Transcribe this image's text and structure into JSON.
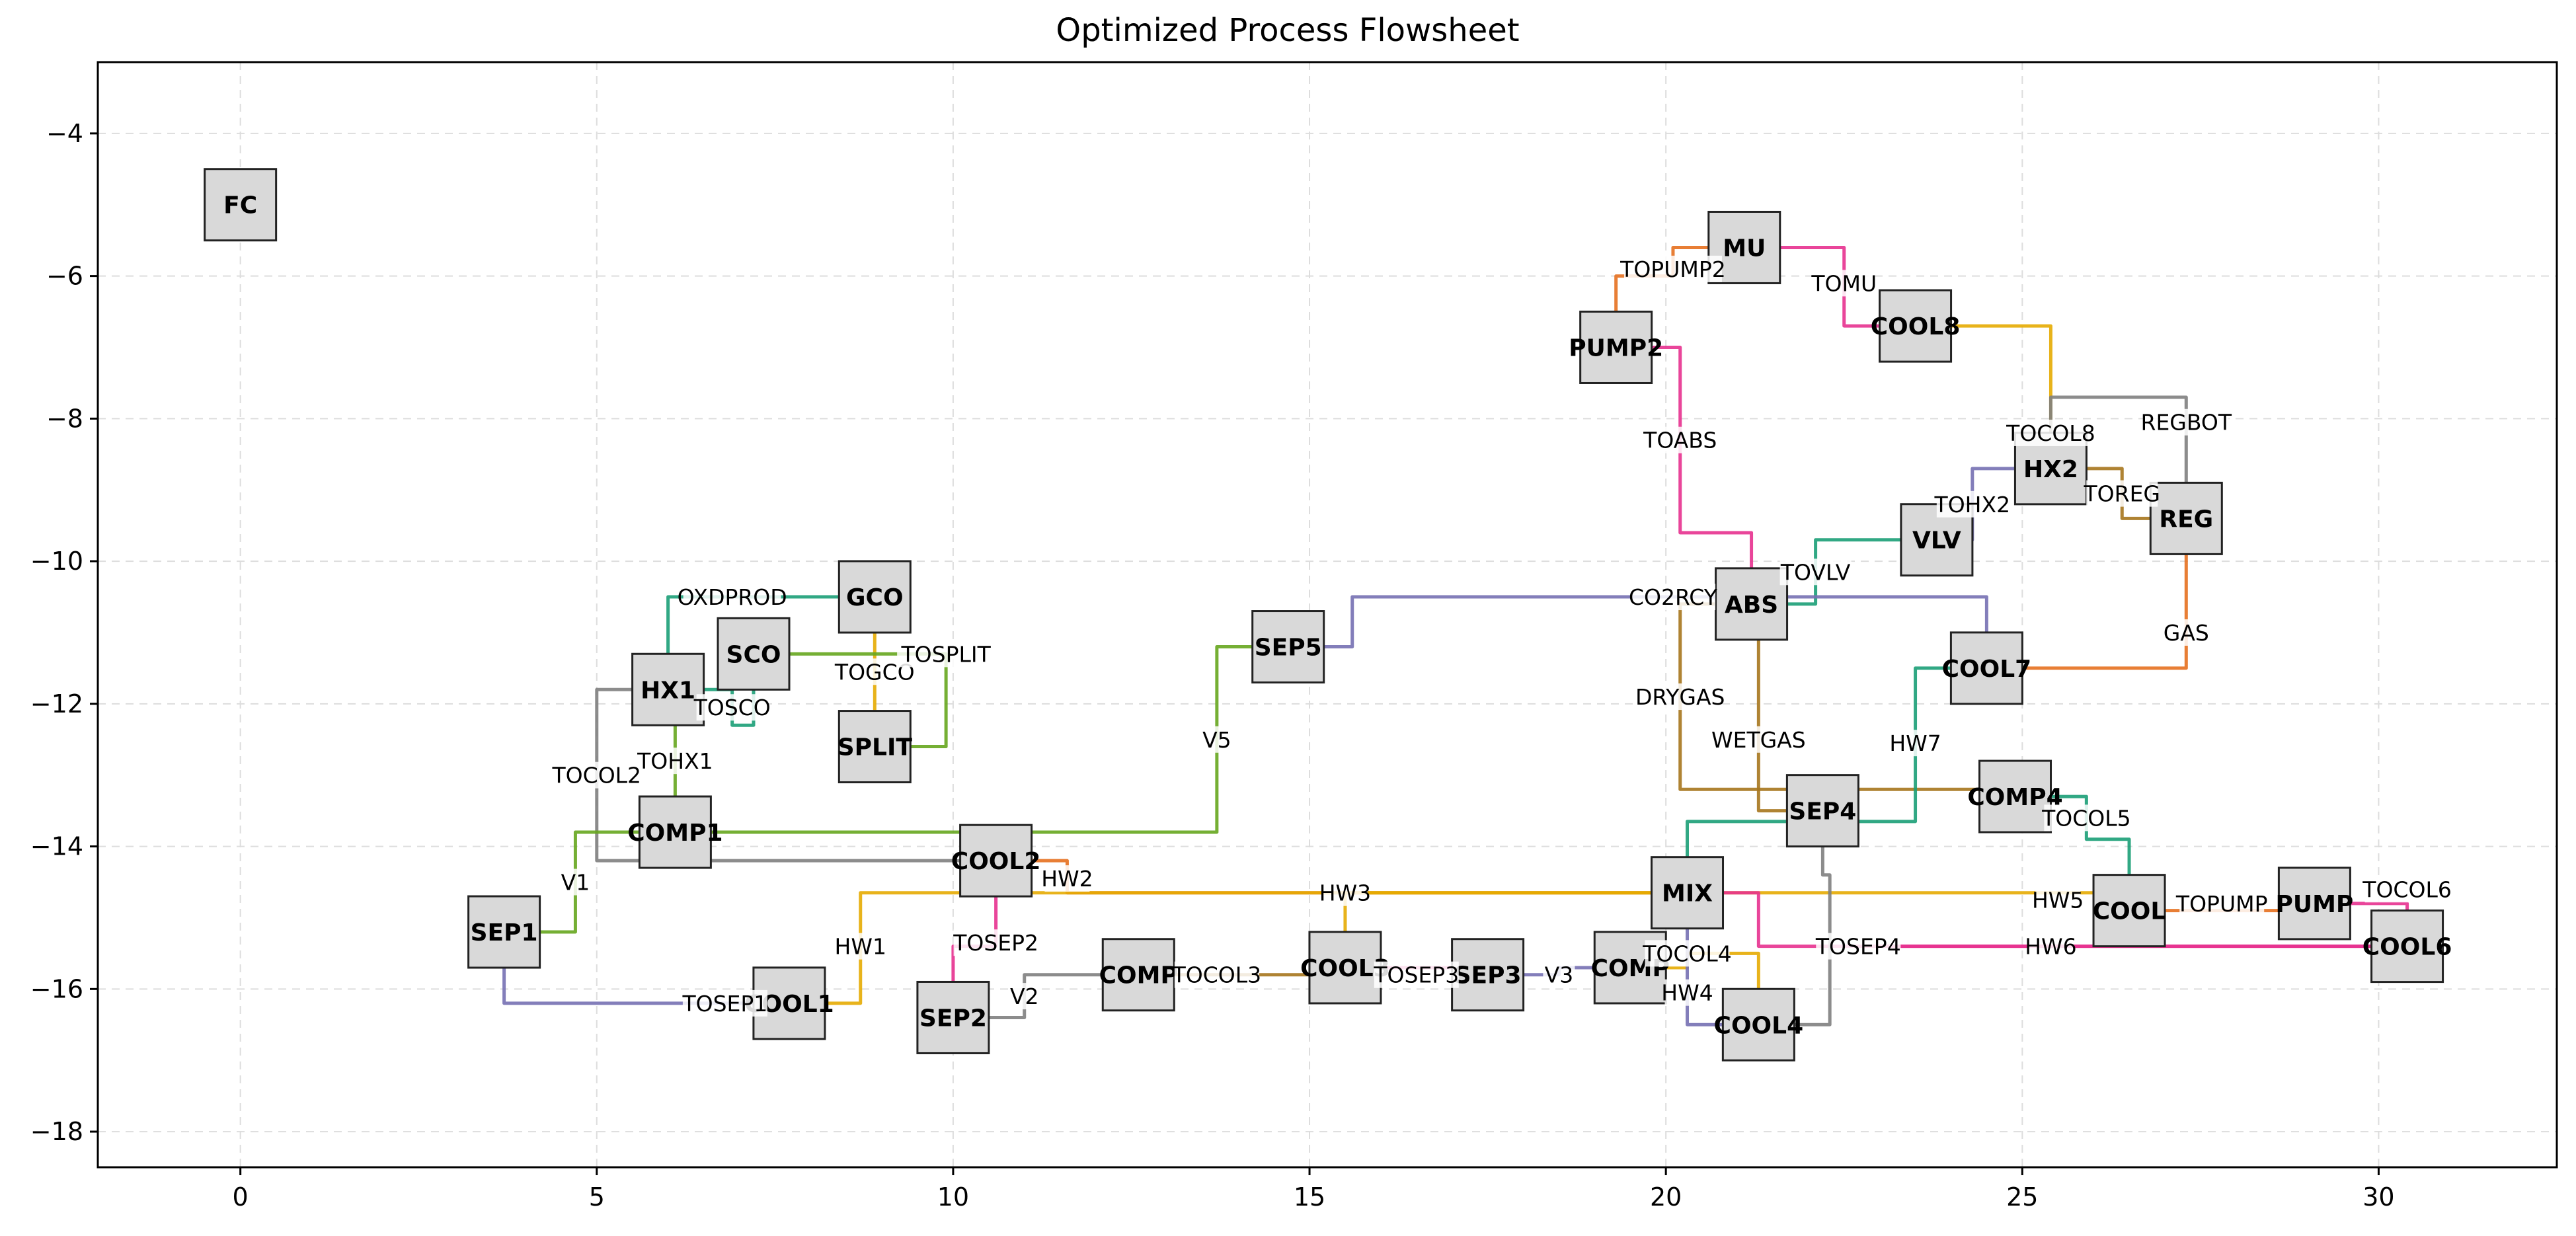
{
  "chart_data": {
    "type": "flowsheet",
    "title": "Optimized Process Flowsheet",
    "xlim": [
      -2,
      32.5
    ],
    "ylim": [
      -18.5,
      -3
    ],
    "xticks": [
      0,
      5,
      10,
      15,
      20,
      25,
      30
    ],
    "yticks": [
      -4,
      -6,
      -8,
      -10,
      -12,
      -14,
      -16,
      -18
    ],
    "grid": true,
    "nodes": [
      {
        "id": "FC",
        "label": "FC",
        "x": 0,
        "y": -5
      },
      {
        "id": "MU",
        "label": "MU",
        "x": 21.1,
        "y": -5.6
      },
      {
        "id": "PUMP2",
        "label": "PUMP2",
        "x": 19.3,
        "y": -7
      },
      {
        "id": "COOL8",
        "label": "COOL8",
        "x": 23.5,
        "y": -6.7
      },
      {
        "id": "HX2",
        "label": "HX2",
        "x": 25.4,
        "y": -8.7
      },
      {
        "id": "REG",
        "label": "REG",
        "x": 27.3,
        "y": -9.4
      },
      {
        "id": "VLV",
        "label": "VLV",
        "x": 23.8,
        "y": -9.7
      },
      {
        "id": "ABS",
        "label": "ABS",
        "x": 21.2,
        "y": -10.6
      },
      {
        "id": "COOL7",
        "label": "COOL7",
        "x": 24.5,
        "y": -11.5
      },
      {
        "id": "GCO",
        "label": "GCO",
        "x": 8.9,
        "y": -10.5
      },
      {
        "id": "SCO",
        "label": "SCO",
        "x": 7.2,
        "y": -11.3
      },
      {
        "id": "HX1",
        "label": "HX1",
        "x": 6,
        "y": -11.8
      },
      {
        "id": "SPLIT",
        "label": "SPLIT",
        "x": 8.9,
        "y": -12.6
      },
      {
        "id": "SEP5",
        "label": "SEP5",
        "x": 14.7,
        "y": -11.2
      },
      {
        "id": "COMP1",
        "label": "COMP1",
        "x": 6.1,
        "y": -13.8
      },
      {
        "id": "COOL2",
        "label": "COOL2",
        "x": 10.6,
        "y": -14.2
      },
      {
        "id": "SEP4",
        "label": "SEP4",
        "x": 22.2,
        "y": -13.5
      },
      {
        "id": "COMP4",
        "label": "COMP4",
        "x": 24.9,
        "y": -13.3
      },
      {
        "id": "MIX",
        "label": "MIX",
        "x": 20.3,
        "y": -14.65
      },
      {
        "id": "COOL5",
        "label": "COOL",
        "x": 26.5,
        "y": -14.9
      },
      {
        "id": "PUMP",
        "label": "PUMP",
        "x": 29.1,
        "y": -14.8
      },
      {
        "id": "COOL6",
        "label": "COOL6",
        "x": 30.4,
        "y": -15.4
      },
      {
        "id": "SEP1",
        "label": "SEP1",
        "x": 3.7,
        "y": -15.2
      },
      {
        "id": "COOL1",
        "label": "COOL1",
        "x": 7.7,
        "y": -16.2
      },
      {
        "id": "SEP2",
        "label": "SEP2",
        "x": 10,
        "y": -16.4
      },
      {
        "id": "COMP2",
        "label": "COMP",
        "x": 12.6,
        "y": -15.8
      },
      {
        "id": "COOL3",
        "label": "COOL3",
        "x": 15.5,
        "y": -15.7
      },
      {
        "id": "SEP3",
        "label": "SEP3",
        "x": 17.5,
        "y": -15.8
      },
      {
        "id": "COMP3",
        "label": "COMP",
        "x": 19.5,
        "y": -15.7
      },
      {
        "id": "COOL4",
        "label": "COOL4",
        "x": 21.3,
        "y": -16.5
      }
    ],
    "streams": [
      {
        "label": "TOPUMP2",
        "color": "#e6701f",
        "points": [
          [
            21.1,
            -5.6
          ],
          [
            20.1,
            -5.6
          ],
          [
            20.1,
            -6.0
          ],
          [
            19.3,
            -6.0
          ],
          [
            19.3,
            -7
          ]
        ],
        "lx": 20.1,
        "ly": -5.9
      },
      {
        "label": "TOMU",
        "color": "#e7318f",
        "points": [
          [
            21.1,
            -5.6
          ],
          [
            22.5,
            -5.6
          ],
          [
            22.5,
            -6.7
          ],
          [
            23.5,
            -6.7
          ]
        ],
        "lx": 22.5,
        "ly": -6.1
      },
      {
        "label": "TOABS",
        "color": "#e7318f",
        "points": [
          [
            19.3,
            -7
          ],
          [
            20.2,
            -7
          ],
          [
            20.2,
            -9.6
          ],
          [
            21.2,
            -9.6
          ],
          [
            21.2,
            -10.6
          ]
        ],
        "lx": 20.2,
        "ly": -8.3
      },
      {
        "label": "TOCOL8",
        "color": "#e6ab02",
        "points": [
          [
            23.5,
            -6.7
          ],
          [
            25.4,
            -6.7
          ],
          [
            25.4,
            -8.7
          ]
        ],
        "lx": 25.4,
        "ly": -8.2
      },
      {
        "label": "REGBOT",
        "color": "#808080",
        "points": [
          [
            27.3,
            -9.4
          ],
          [
            27.3,
            -7.7
          ],
          [
            25.4,
            -7.7
          ],
          [
            25.4,
            -8.7
          ]
        ],
        "lx": 27.3,
        "ly": -8.05
      },
      {
        "label": "TOREG",
        "color": "#a6761d",
        "points": [
          [
            25.4,
            -8.7
          ],
          [
            26.4,
            -8.7
          ],
          [
            26.4,
            -9.4
          ],
          [
            27.3,
            -9.4
          ]
        ],
        "lx": 26.4,
        "ly": -9.05
      },
      {
        "label": "TOHX2",
        "color": "#7570b3",
        "points": [
          [
            23.8,
            -9.7
          ],
          [
            24.3,
            -9.7
          ],
          [
            24.3,
            -8.7
          ],
          [
            25.4,
            -8.7
          ]
        ],
        "lx": 24.3,
        "ly": -9.2
      },
      {
        "label": "TOVLV",
        "color": "#1b9e77",
        "points": [
          [
            21.2,
            -10.6
          ],
          [
            22.1,
            -10.6
          ],
          [
            22.1,
            -9.7
          ],
          [
            23.8,
            -9.7
          ]
        ],
        "lx": 22.1,
        "ly": -10.15
      },
      {
        "label": "GAS",
        "color": "#e6701f",
        "points": [
          [
            27.3,
            -9.4
          ],
          [
            27.3,
            -11.5
          ],
          [
            24.5,
            -11.5
          ]
        ],
        "lx": 27.3,
        "ly": -11.0
      },
      {
        "label": "CO2RCY",
        "color": "#7570b3",
        "points": [
          [
            24.5,
            -11.5
          ],
          [
            24.5,
            -10.5
          ],
          [
            15.6,
            -10.5
          ],
          [
            15.6,
            -11.2
          ],
          [
            14.7,
            -11.2
          ]
        ],
        "lx": 20.1,
        "ly": -10.5
      },
      {
        "label": "DRYGAS",
        "color": "#a6761d",
        "points": [
          [
            21.2,
            -10.6
          ],
          [
            20.2,
            -10.6
          ],
          [
            20.2,
            -13.2
          ],
          [
            24.9,
            -13.2
          ]
        ],
        "lx": 20.2,
        "ly": -11.9
      },
      {
        "label": "WETGAS",
        "color": "#a6761d",
        "points": [
          [
            21.2,
            -10.6
          ],
          [
            21.3,
            -10.6
          ],
          [
            21.3,
            -13.5
          ],
          [
            22.2,
            -13.5
          ]
        ],
        "lx": 21.3,
        "ly": -12.5
      },
      {
        "label": "HW7",
        "color": "#1b9e77",
        "points": [
          [
            24.5,
            -11.5
          ],
          [
            23.5,
            -11.5
          ],
          [
            23.5,
            -13.65
          ],
          [
            20.3,
            -13.65
          ],
          [
            20.3,
            -14.65
          ]
        ],
        "lx": 23.5,
        "ly": -12.55
      },
      {
        "label": "TOCOL5",
        "color": "#1b9e77",
        "points": [
          [
            24.9,
            -13.3
          ],
          [
            25.9,
            -13.3
          ],
          [
            25.9,
            -13.9
          ],
          [
            26.5,
            -13.9
          ],
          [
            26.5,
            -14.9
          ]
        ],
        "lx": 25.9,
        "ly": -13.6
      },
      {
        "label": "OXDPROD",
        "color": "#1b9e77",
        "points": [
          [
            8.9,
            -10.5
          ],
          [
            6,
            -10.5
          ],
          [
            6,
            -11.8
          ]
        ],
        "lx": 6.9,
        "ly": -10.5
      },
      {
        "label": "TOSCO",
        "color": "#1b9e77",
        "points": [
          [
            6,
            -11.8
          ],
          [
            6.9,
            -11.8
          ],
          [
            6.9,
            -12.3
          ],
          [
            7.2,
            -12.3
          ],
          [
            7.2,
            -11.3
          ]
        ],
        "lx": 6.9,
        "ly": -12.05
      },
      {
        "label": "TOGCO",
        "color": "#e6ab02",
        "points": [
          [
            8.9,
            -12.6
          ],
          [
            8.9,
            -10.5
          ]
        ],
        "lx": 8.9,
        "ly": -11.55
      },
      {
        "label": "TOSPLIT",
        "color": "#66a61e",
        "points": [
          [
            7.2,
            -11.3
          ],
          [
            9.9,
            -11.3
          ],
          [
            9.9,
            -12.6
          ],
          [
            8.9,
            -12.6
          ]
        ],
        "lx": 9.9,
        "ly": -11.3
      },
      {
        "label": "TOHX1",
        "color": "#66a61e",
        "points": [
          [
            6.1,
            -13.8
          ],
          [
            6.1,
            -11.8
          ]
        ],
        "lx": 6.1,
        "ly": -12.8
      },
      {
        "label": "TOCOL2",
        "color": "#808080",
        "points": [
          [
            6,
            -11.8
          ],
          [
            5,
            -11.8
          ],
          [
            5,
            -14.2
          ],
          [
            10.6,
            -14.2
          ]
        ],
        "lx": 5,
        "ly": -13.0
      },
      {
        "label": "V1",
        "color": "#66a61e",
        "points": [
          [
            3.7,
            -15.2
          ],
          [
            4.7,
            -15.2
          ],
          [
            4.7,
            -13.8
          ],
          [
            6.1,
            -13.8
          ]
        ],
        "lx": 4.7,
        "ly": -14.5
      },
      {
        "label": "V5",
        "color": "#66a61e",
        "points": [
          [
            6.1,
            -13.8
          ],
          [
            13.7,
            -13.8
          ],
          [
            13.7,
            -11.2
          ],
          [
            14.7,
            -11.2
          ]
        ],
        "lx": 13.7,
        "ly": -12.5
      },
      {
        "label": "HW2",
        "color": "#e6701f",
        "points": [
          [
            10.6,
            -14.2
          ],
          [
            11.6,
            -14.2
          ],
          [
            11.6,
            -14.65
          ],
          [
            20.3,
            -14.65
          ]
        ],
        "lx": 11.6,
        "ly": -14.45
      },
      {
        "label": "HW3",
        "color": "#e6ab02",
        "points": [
          [
            20.3,
            -14.65
          ],
          [
            15.5,
            -14.65
          ],
          [
            15.5,
            -15.7
          ]
        ],
        "lx": 15.5,
        "ly": -14.65
      },
      {
        "label": "HW1",
        "color": "#e6ab02",
        "points": [
          [
            20.3,
            -14.65
          ],
          [
            8.7,
            -14.65
          ],
          [
            8.7,
            -16.2
          ],
          [
            7.7,
            -16.2
          ]
        ],
        "lx": 8.7,
        "ly": -15.4
      },
      {
        "label": "HW5",
        "color": "#e6ab02",
        "points": [
          [
            20.3,
            -14.65
          ],
          [
            26.5,
            -14.65
          ],
          [
            26.5,
            -14.9
          ]
        ],
        "lx": 25.5,
        "ly": -14.75
      },
      {
        "label": "TOPUMP",
        "color": "#e6701f",
        "points": [
          [
            26.5,
            -14.9
          ],
          [
            29.1,
            -14.9
          ],
          [
            29.1,
            -14.8
          ]
        ],
        "lx": 27.8,
        "ly": -14.8
      },
      {
        "label": "TOCOL6",
        "color": "#e7318f",
        "points": [
          [
            29.1,
            -14.8
          ],
          [
            30.4,
            -14.8
          ],
          [
            30.4,
            -15.4
          ]
        ],
        "lx": 30.4,
        "ly": -14.6
      },
      {
        "label": "HW6",
        "color": "#e7318f",
        "points": [
          [
            30.4,
            -15.4
          ],
          [
            23,
            -15.4
          ],
          [
            23,
            -15.4
          ]
        ],
        "lx": 25.4,
        "ly": -15.4
      },
      {
        "label": "TOSEP4",
        "color": "#e7318f",
        "points": [
          [
            20.3,
            -14.65
          ],
          [
            21.3,
            -14.65
          ],
          [
            21.3,
            -15.4
          ],
          [
            30.4,
            -15.4
          ]
        ],
        "lx": 22.7,
        "ly": -15.4
      },
      {
        "label": "TOSEP1",
        "color": "#7570b3",
        "points": [
          [
            7.7,
            -16.2
          ],
          [
            3.7,
            -16.2
          ],
          [
            3.7,
            -15.2
          ]
        ],
        "lx": 6.8,
        "ly": -16.2
      },
      {
        "label": "TOSEP2",
        "color": "#e7318f",
        "points": [
          [
            10.6,
            -14.2
          ],
          [
            10.6,
            -15.4
          ],
          [
            10,
            -15.4
          ],
          [
            10,
            -16.4
          ]
        ],
        "lx": 10.6,
        "ly": -15.35
      },
      {
        "label": "V2",
        "color": "#808080",
        "points": [
          [
            10,
            -16.4
          ],
          [
            11,
            -16.4
          ],
          [
            11,
            -15.8
          ],
          [
            12.6,
            -15.8
          ]
        ],
        "lx": 11,
        "ly": -16.1
      },
      {
        "label": "TOCOL3",
        "color": "#a6761d",
        "points": [
          [
            12.6,
            -15.8
          ],
          [
            15.5,
            -15.8
          ],
          [
            15.5,
            -15.7
          ]
        ],
        "lx": 13.7,
        "ly": -15.8
      },
      {
        "label": "TOSEP3",
        "color": "#e7318f",
        "points": [
          [
            15.5,
            -15.7
          ],
          [
            17.5,
            -15.7
          ],
          [
            17.5,
            -15.8
          ]
        ],
        "lx": 16.5,
        "ly": -15.8
      },
      {
        "label": "V3",
        "color": "#7570b3",
        "points": [
          [
            17.5,
            -15.8
          ],
          [
            18.5,
            -15.8
          ],
          [
            18.5,
            -15.7
          ],
          [
            19.5,
            -15.7
          ]
        ],
        "lx": 18.5,
        "ly": -15.8
      },
      {
        "label": "TOCOL4",
        "color": "#e6ab02",
        "points": [
          [
            19.5,
            -15.7
          ],
          [
            20.3,
            -15.7
          ],
          [
            20.3,
            -15.5
          ],
          [
            21.3,
            -15.5
          ],
          [
            21.3,
            -16.5
          ]
        ],
        "lx": 20.3,
        "ly": -15.5
      },
      {
        "label": "HW4",
        "color": "#7570b3",
        "points": [
          [
            20.3,
            -14.65
          ],
          [
            20.3,
            -16.5
          ],
          [
            21.3,
            -16.5
          ]
        ],
        "lx": 20.3,
        "ly": -16.05
      },
      {
        "label": "",
        "color": "#808080",
        "points": [
          [
            21.3,
            -16.5
          ],
          [
            22.3,
            -16.5
          ],
          [
            22.3,
            -14.4
          ],
          [
            22.2,
            -14.4
          ],
          [
            22.2,
            -13.5
          ]
        ],
        "lx": 22.3,
        "ly": -15.5
      }
    ]
  }
}
